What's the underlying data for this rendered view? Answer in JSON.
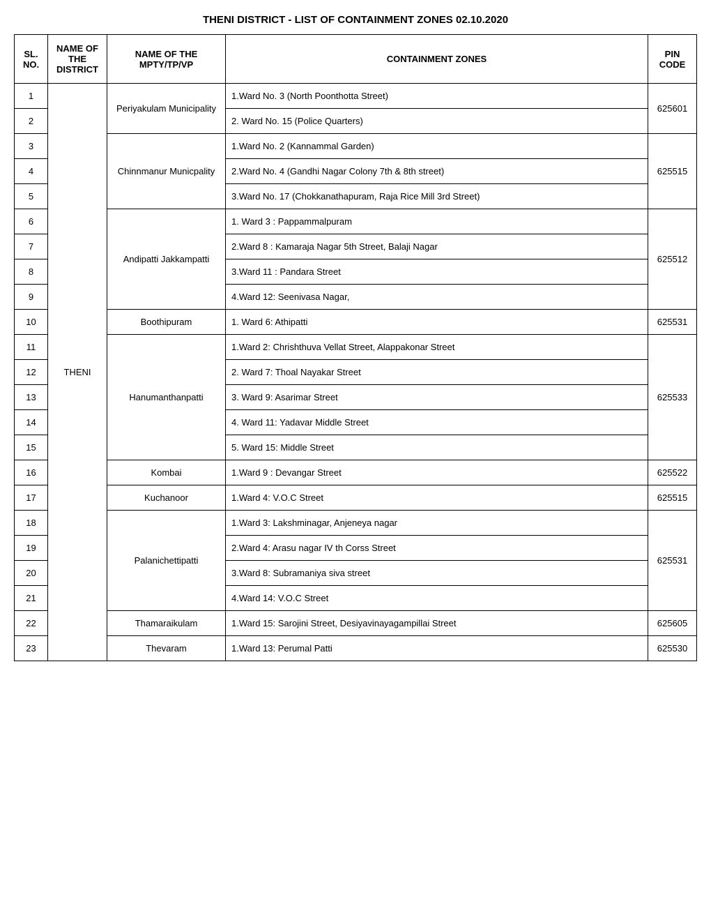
{
  "document_title": "THENI DISTRICT - LIST OF CONTAINMENT ZONES  02.10.2020",
  "columns": {
    "sl": "SL. NO.",
    "district": "NAME OF THE DISTRICT",
    "mpty": "NAME OF THE MPTY/TP/VP",
    "zones": "CONTAINMENT ZONES",
    "pin": "PIN CODE"
  },
  "district": "THENI",
  "rows": [
    {
      "sl": "1",
      "zone": "1.Ward No. 3 (North Poonthotta Street)"
    },
    {
      "sl": "2",
      "zone": "2. Ward No. 15 (Police Quarters)"
    },
    {
      "sl": "3",
      "zone": "1.Ward No. 2 (Kannammal Garden)"
    },
    {
      "sl": "4",
      "zone": "2.Ward No. 4 (Gandhi Nagar Colony 7th & 8th street)"
    },
    {
      "sl": "5",
      "zone": "3.Ward No. 17 (Chokkanathapuram, Raja Rice Mill 3rd Street)"
    },
    {
      "sl": "6",
      "zone": "1. Ward 3 : Pappammalpuram"
    },
    {
      "sl": "7",
      "zone": "2.Ward 8 :  Kamaraja Nagar 5th Street, Balaji Nagar"
    },
    {
      "sl": "8",
      "zone": "3.Ward 11 :  Pandara Street"
    },
    {
      "sl": "9",
      "zone": "4.Ward 12: Seenivasa Nagar,"
    },
    {
      "sl": "10",
      "zone": "1. Ward 6: Athipatti"
    },
    {
      "sl": "11",
      "zone": "1.Ward 2:  Chrishthuva Vellat Street, Alappakonar Street"
    },
    {
      "sl": "12",
      "zone": "2. Ward 7:  Thoal Nayakar Street"
    },
    {
      "sl": "13",
      "zone": "3. Ward 9:  Asarimar Street"
    },
    {
      "sl": "14",
      "zone": "4. Ward 11:  Yadavar Middle Street"
    },
    {
      "sl": "15",
      "zone": "5. Ward 15:  Middle Street"
    },
    {
      "sl": "16",
      "zone": "1.Ward 9 : Devangar Street"
    },
    {
      "sl": "17",
      "zone": "1.Ward 4:  V.O.C Street"
    },
    {
      "sl": "18",
      "zone": "1.Ward 3: Lakshminagar, Anjeneya nagar"
    },
    {
      "sl": "19",
      "zone": "2.Ward 4:  Arasu nagar IV th Corss Street"
    },
    {
      "sl": "20",
      "zone": "3.Ward 8:  Subramaniya siva street"
    },
    {
      "sl": "21",
      "zone": "4.Ward 14:  V.O.C Street"
    },
    {
      "sl": "22",
      "zone": "1.Ward 15: Sarojini Street, Desiyavinayagampillai Street"
    },
    {
      "sl": "23",
      "zone": "1.Ward 13: Perumal Patti"
    }
  ],
  "mpty_groups": [
    {
      "name": "Periyakulam Municipality",
      "rowspan": 2,
      "pin": "625601",
      "pin_rowspan": 2
    },
    {
      "name": "Chinnmanur Municpality",
      "rowspan": 3,
      "pin": "625515",
      "pin_rowspan": 3
    },
    {
      "name": "Andipatti Jakkampatti",
      "rowspan": 4,
      "pin": "625512",
      "pin_rowspan": 4
    },
    {
      "name": "Boothipuram",
      "rowspan": 1,
      "pin": "625531",
      "pin_rowspan": 1
    },
    {
      "name": "Hanumanthanpatti",
      "rowspan": 5,
      "pin": "625533",
      "pin_rowspan": 5
    },
    {
      "name": "Kombai",
      "rowspan": 1,
      "pin": "625522",
      "pin_rowspan": 1
    },
    {
      "name": "Kuchanoor",
      "rowspan": 1,
      "pin": "625515",
      "pin_rowspan": 1
    },
    {
      "name": "Palanichettipatti",
      "rowspan": 4,
      "pin": "625531",
      "pin_rowspan": 4
    },
    {
      "name": "Thamaraikulam",
      "rowspan": 1,
      "pin": "625605",
      "pin_rowspan": 1
    },
    {
      "name": "Thevaram",
      "rowspan": 1,
      "pin": "625530",
      "pin_rowspan": 1
    }
  ],
  "styling": {
    "font_family": "Arial",
    "title_fontsize": 15,
    "cell_fontsize": 13,
    "border_color": "#000000",
    "border_width": 1.5,
    "background_color": "#ffffff",
    "text_color": "#000000",
    "col_widths": {
      "sl": 48,
      "district": 85,
      "mpty": 170,
      "pin": 70
    }
  }
}
